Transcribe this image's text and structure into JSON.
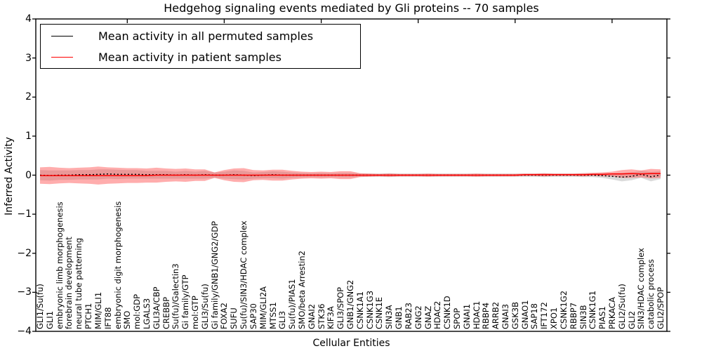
{
  "chart_data": {
    "type": "line",
    "title": "Hedgehog signaling events mediated by Gli proteins -- 70 samples",
    "xlabel": "Cellular Entities",
    "ylabel": "Inferred Activity",
    "ylim": [
      -4,
      4
    ],
    "grid": false,
    "yticks": {
      "values": [
        4,
        3,
        2,
        1,
        0,
        -1,
        -2,
        -3,
        -4
      ],
      "labels": [
        "4",
        "3",
        "2",
        "1",
        "0",
        "−1",
        "−2",
        "−3",
        "−4"
      ]
    },
    "x_major_tick_indices": [
      9,
      19,
      29,
      39,
      49,
      59
    ],
    "categories": [
      "GLI1/Su(fu)",
      "GLI1",
      "embryonic limb morphogenesis",
      "forebrain development",
      "neural tube patterning",
      "PTCH1",
      "MIM/GLI1",
      "IFT88",
      "embryonic digit morphogenesis",
      "SMO",
      "mol:GDP",
      "LGALS3",
      "GLI3A/CBP",
      "CREBBP",
      "Su(fu)/Galectin3",
      "Gi family/GTP",
      "mol:GTP",
      "GLI3/Su(fu)",
      "Gi family/GNB1/GNG2/GDP",
      "FOXA2",
      "SUFU",
      "Su(fu)/SIN3/HDAC complex",
      "SAP30",
      "MIM/GLI2A",
      "MTSS1",
      "GLI3",
      "Su(fu)/PIAS1",
      "SMO/beta Arrestin2",
      "GNAI2",
      "STK36",
      "KIF3A",
      "GLI3/SPOP",
      "GNB1/GNG2",
      "CSNK1A1",
      "CSNK1G3",
      "CSNK1E",
      "SIN3A",
      "GNB1",
      "RAB23",
      "GNG2",
      "GNAZ",
      "HDAC2",
      "CSNK1D",
      "SPOP",
      "GNAI1",
      "HDAC1",
      "RBBP4",
      "ARRB2",
      "GNAI3",
      "GSK3B",
      "GNAO1",
      "SAP18",
      "IFT172",
      "XPO1",
      "CSNK1G2",
      "RBBP7",
      "SIN3B",
      "CSNK1G1",
      "PIAS1",
      "PRKACA",
      "GLI2/Su(fu)",
      "GLI2",
      "SIN3/HDAC complex",
      "catabolic process",
      "GLI2/SPOP"
    ],
    "series": [
      {
        "name": "Mean activity in all permuted samples",
        "line_color": "#000000",
        "line_style": "dotted",
        "band_color": "#000000",
        "band_opacity": 0.14,
        "mean": [
          0.0,
          -0.01,
          0.0,
          0.0,
          0.01,
          0.01,
          0.02,
          0.03,
          0.02,
          0.02,
          0.02,
          0.01,
          0.01,
          0.01,
          0.0,
          0.01,
          0.0,
          0.01,
          0.0,
          0.0,
          0.01,
          0.0,
          -0.01,
          0.0,
          0.01,
          0.0,
          0.0,
          0.0,
          0.0,
          0.0,
          0.0,
          0.0,
          0.0,
          0.0,
          0.0,
          0.0,
          0.0,
          0.0,
          0.0,
          0.0,
          0.0,
          0.0,
          0.0,
          0.0,
          0.0,
          0.0,
          0.0,
          0.0,
          0.0,
          0.0,
          0.0,
          0.0,
          0.0,
          0.0,
          0.0,
          0.0,
          0.0,
          0.0,
          -0.01,
          -0.03,
          -0.05,
          -0.03,
          0.02,
          -0.04,
          0.0
        ],
        "std": [
          0.13,
          0.13,
          0.12,
          0.12,
          0.12,
          0.12,
          0.13,
          0.12,
          0.12,
          0.11,
          0.11,
          0.1,
          0.1,
          0.1,
          0.09,
          0.1,
          0.09,
          0.1,
          0.07,
          0.09,
          0.11,
          0.11,
          0.08,
          0.08,
          0.09,
          0.09,
          0.07,
          0.06,
          0.05,
          0.06,
          0.05,
          0.06,
          0.06,
          0.04,
          0.04,
          0.04,
          0.05,
          0.04,
          0.04,
          0.04,
          0.04,
          0.04,
          0.04,
          0.04,
          0.04,
          0.04,
          0.04,
          0.04,
          0.04,
          0.04,
          0.04,
          0.04,
          0.05,
          0.04,
          0.04,
          0.04,
          0.05,
          0.05,
          0.06,
          0.08,
          0.11,
          0.1,
          0.09,
          0.12,
          0.1
        ]
      },
      {
        "name": "Mean activity in patient samples",
        "line_color": "#ff0000",
        "line_style": "solid",
        "band_color": "#ff3c3c",
        "band_opacity": 0.42,
        "mean": [
          -0.01,
          -0.01,
          -0.01,
          -0.01,
          -0.01,
          -0.01,
          -0.01,
          -0.01,
          -0.01,
          -0.01,
          -0.01,
          -0.01,
          0.0,
          0.0,
          0.0,
          0.0,
          0.0,
          0.0,
          0.0,
          0.0,
          0.0,
          0.0,
          0.0,
          0.0,
          0.0,
          0.0,
          0.0,
          0.0,
          0.0,
          0.0,
          0.0,
          0.0,
          0.0,
          0.0,
          0.0,
          0.0,
          0.0,
          0.0,
          0.0,
          0.0,
          0.0,
          0.0,
          0.0,
          0.0,
          0.0,
          0.0,
          0.0,
          0.0,
          0.0,
          0.0,
          0.01,
          0.01,
          0.01,
          0.01,
          0.01,
          0.01,
          0.01,
          0.02,
          0.02,
          0.03,
          0.03,
          0.04,
          0.03,
          0.04,
          0.04
        ],
        "std": [
          0.21,
          0.22,
          0.2,
          0.19,
          0.2,
          0.21,
          0.23,
          0.21,
          0.2,
          0.19,
          0.19,
          0.18,
          0.19,
          0.17,
          0.16,
          0.17,
          0.15,
          0.15,
          0.07,
          0.13,
          0.17,
          0.18,
          0.13,
          0.12,
          0.14,
          0.14,
          0.11,
          0.09,
          0.08,
          0.09,
          0.08,
          0.1,
          0.1,
          0.05,
          0.04,
          0.03,
          0.04,
          0.03,
          0.03,
          0.03,
          0.04,
          0.03,
          0.03,
          0.03,
          0.03,
          0.04,
          0.03,
          0.03,
          0.03,
          0.03,
          0.03,
          0.03,
          0.04,
          0.03,
          0.03,
          0.03,
          0.04,
          0.04,
          0.05,
          0.06,
          0.1,
          0.11,
          0.09,
          0.12,
          0.11
        ]
      }
    ],
    "legend": {
      "position": "upper left",
      "entries": [
        {
          "label": "Mean activity in all permuted samples",
          "color": "#000000"
        },
        {
          "label": "Mean activity in patient samples",
          "color": "#ff0000"
        }
      ]
    }
  }
}
